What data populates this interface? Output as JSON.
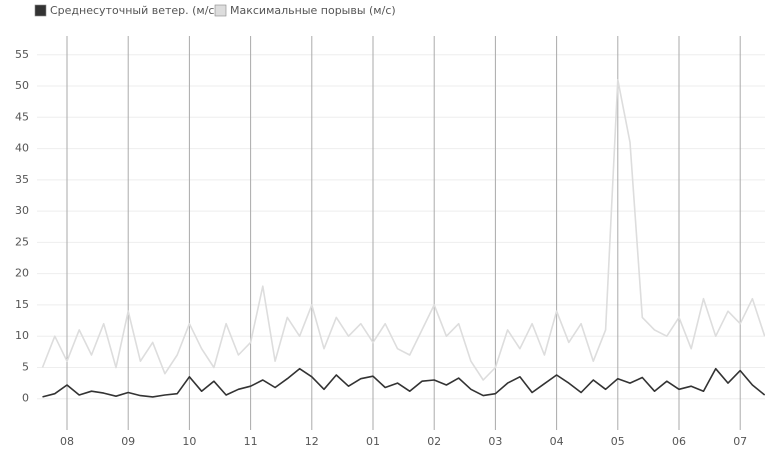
{
  "chart_data": {
    "type": "line",
    "categories": [
      null,
      null,
      "08",
      null,
      null,
      null,
      null,
      "09",
      null,
      null,
      null,
      null,
      "10",
      null,
      null,
      null,
      null,
      "11",
      null,
      null,
      null,
      null,
      "12",
      null,
      null,
      null,
      null,
      "01",
      null,
      null,
      null,
      null,
      "02",
      null,
      null,
      null,
      null,
      "03",
      null,
      null,
      null,
      null,
      "04",
      null,
      null,
      null,
      null,
      "05",
      null,
      null,
      null,
      null,
      "06",
      null,
      null,
      null,
      null,
      "07",
      null,
      null
    ],
    "series": [
      {
        "name": "Среднесуточный ветер. (м/с)",
        "color": "#333333",
        "values": [
          0.3,
          0.8,
          2.2,
          0.6,
          1.2,
          0.9,
          0.4,
          1.0,
          0.5,
          0.3,
          0.6,
          0.8,
          3.5,
          1.2,
          2.8,
          0.6,
          1.5,
          2.0,
          3.0,
          1.8,
          3.2,
          4.8,
          3.5,
          1.5,
          3.8,
          2.0,
          3.2,
          3.6,
          1.8,
          2.5,
          1.2,
          2.8,
          3.0,
          2.2,
          3.3,
          1.5,
          0.5,
          0.8,
          2.5,
          3.5,
          1.0,
          2.4,
          3.8,
          2.5,
          1.0,
          3.0,
          1.5,
          3.2,
          2.5,
          3.4,
          1.2,
          2.8,
          1.5,
          2.0,
          1.2,
          4.8,
          2.5,
          4.5,
          2.2,
          0.6
        ]
      },
      {
        "name": "Максимальные порывы (м/с)",
        "color": "#dddddd",
        "values": [
          5,
          10,
          6,
          11,
          7,
          12,
          5,
          14,
          6,
          9,
          4,
          7,
          12,
          8,
          5,
          12,
          7,
          9,
          18,
          6,
          13,
          10,
          15,
          8,
          13,
          10,
          12,
          9,
          12,
          8,
          7,
          11,
          15,
          10,
          12,
          6,
          3,
          5,
          11,
          8,
          12,
          7,
          14,
          9,
          12,
          6,
          11,
          51,
          41,
          13,
          11,
          10,
          13,
          8,
          16,
          10,
          14,
          12,
          16,
          10
        ]
      }
    ],
    "ylim": [
      -5,
      58
    ],
    "yticks": [
      0,
      5,
      10,
      15,
      20,
      25,
      30,
      35,
      40,
      45,
      50,
      55
    ],
    "grid": true,
    "legend": "top-left"
  }
}
